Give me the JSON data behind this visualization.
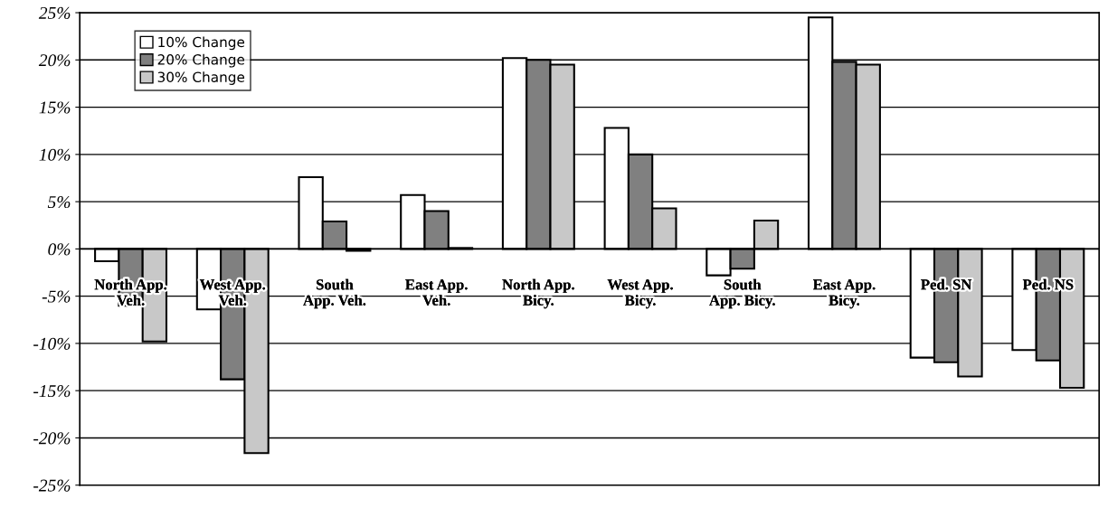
{
  "chart_data": {
    "type": "bar",
    "categories": [
      "North App.\nVeh.",
      "West App.\nVeh.",
      "South\nApp. Veh.",
      "East App.\nVeh.",
      "North App.\nBicy.",
      "West App.\nBicy.",
      "South\nApp. Bicy.",
      "East App.\nBicy.",
      "Ped. SN",
      "Ped. NS"
    ],
    "series": [
      {
        "name": "10% Change",
        "color": "#ffffff",
        "values": [
          -1.3,
          -6.4,
          7.6,
          5.7,
          20.2,
          12.8,
          -2.8,
          24.5,
          -11.5,
          -10.7
        ]
      },
      {
        "name": "20% Change",
        "color": "#808080",
        "values": [
          -6.0,
          -13.8,
          2.9,
          4.0,
          20.0,
          10.0,
          -2.1,
          19.8,
          -12.0,
          -11.8
        ]
      },
      {
        "name": "30% Change",
        "color": "#c8c8c8",
        "values": [
          -9.8,
          -21.6,
          -0.2,
          0.1,
          19.5,
          4.3,
          3.0,
          19.5,
          -13.5,
          -14.7
        ]
      }
    ],
    "ylim": [
      -25,
      25
    ],
    "yticks": [
      {
        "value": -25,
        "label": "-25%"
      },
      {
        "value": -20,
        "label": "-20%"
      },
      {
        "value": -15,
        "label": "-15%"
      },
      {
        "value": -10,
        "label": "-10%"
      },
      {
        "value": -5,
        "label": "-5%"
      },
      {
        "value": 0,
        "label": "0%"
      },
      {
        "value": 5,
        "label": "5%"
      },
      {
        "value": 10,
        "label": "10%"
      },
      {
        "value": 15,
        "label": "15%"
      },
      {
        "value": 20,
        "label": "20%"
      },
      {
        "value": 25,
        "label": "25%"
      }
    ],
    "grid": "y",
    "legend": "top left"
  }
}
